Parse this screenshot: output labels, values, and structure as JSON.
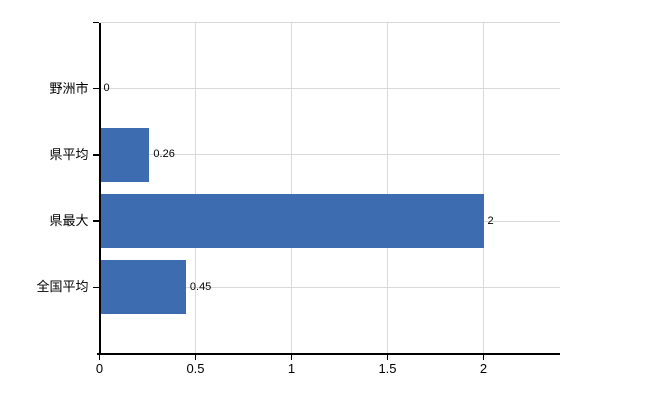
{
  "chart_data": {
    "type": "bar",
    "orientation": "horizontal",
    "title": "",
    "categories": [
      "野洲市",
      "県平均",
      "県最大",
      "全国平均"
    ],
    "values": [
      0,
      0.26,
      2,
      0.45
    ],
    "data_labels": [
      "0",
      "0.26",
      "2",
      "0.45"
    ],
    "x_ticks": [
      0,
      0.5,
      1,
      1.5,
      2
    ],
    "x_tick_labels": [
      "0",
      "0.5",
      "1",
      "1.5",
      "2"
    ],
    "xlim": [
      0,
      2.4
    ],
    "xlabel": "",
    "ylabel": "",
    "grid": true,
    "legend": false,
    "colors": {
      "bar": "#3d6cb0",
      "grid": "#d9d9d9",
      "axis": "#000000",
      "text": "#000000",
      "background": "#ffffff"
    }
  }
}
